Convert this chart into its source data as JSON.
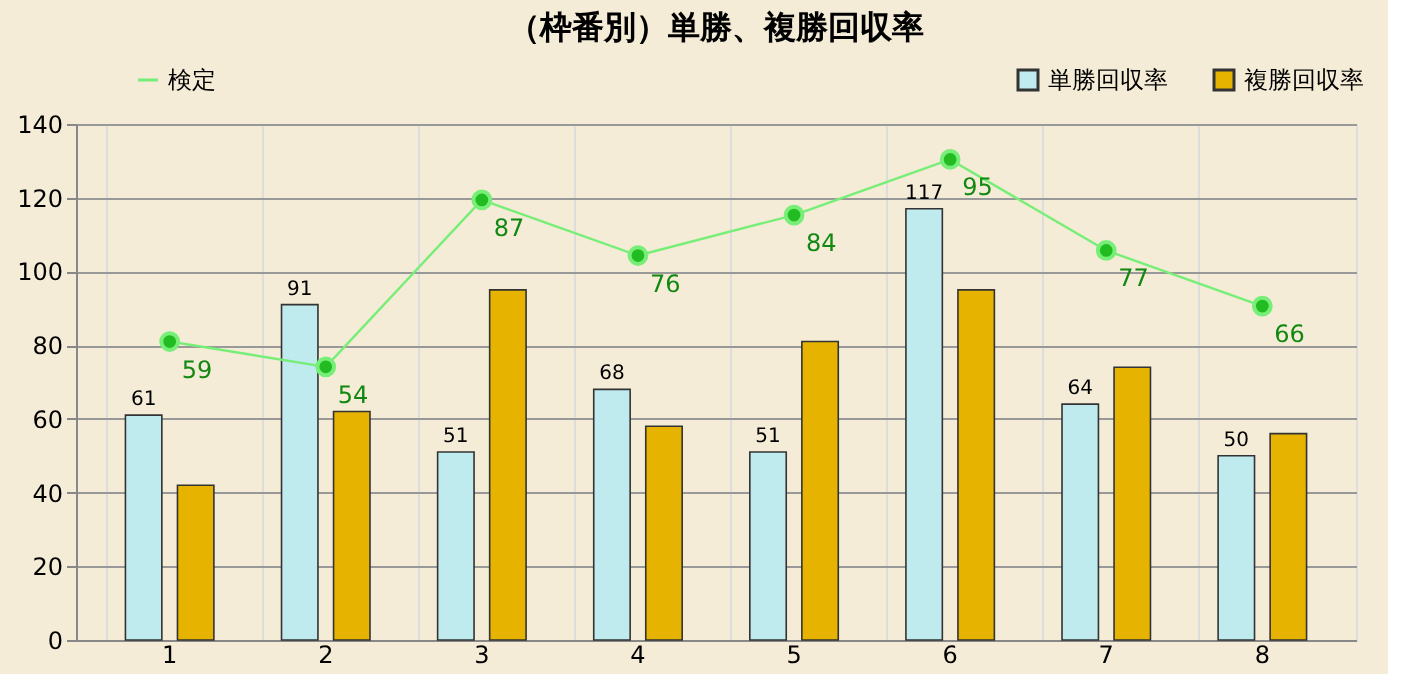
{
  "chart_data": {
    "type": "bar",
    "title": "（枠番別）単勝、複勝回収率",
    "categories": [
      "1",
      "2",
      "3",
      "4",
      "5",
      "6",
      "7",
      "8"
    ],
    "ylim": [
      0,
      140
    ],
    "yticks": [
      0,
      20,
      40,
      60,
      80,
      100,
      120,
      140
    ],
    "y2lim": [
      0,
      102
    ],
    "grid": true,
    "legend": "top",
    "series": [
      {
        "name": "単勝回収率",
        "color": "#bfeaee",
        "values": [
          61,
          91,
          51,
          68,
          51,
          117,
          64,
          50
        ],
        "value_labels": [
          "61",
          "91",
          "51",
          "68",
          "51",
          "117",
          "64",
          "50"
        ]
      },
      {
        "name": "複勝回収率",
        "color": "#e6b400",
        "values": [
          42,
          62,
          95,
          58,
          81,
          95,
          74,
          56
        ]
      },
      {
        "name": "検定",
        "type": "line",
        "axis": "y2",
        "color": "#22bb22",
        "marker": "circle",
        "values": [
          59,
          54,
          87,
          76,
          84,
          95,
          77,
          66
        ],
        "value_labels": [
          "59",
          "54",
          "87",
          "76",
          "84",
          "95",
          "77",
          "66"
        ]
      }
    ]
  }
}
